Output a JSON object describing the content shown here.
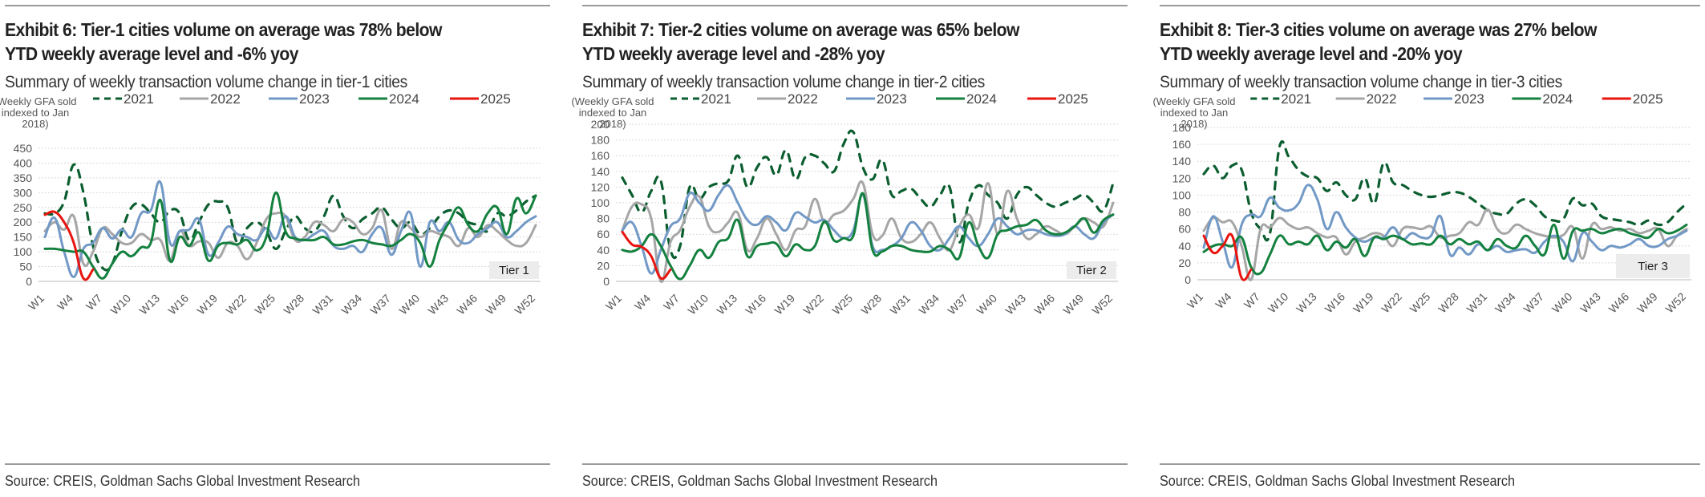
{
  "source": "Source: CREIS, Goldman Sachs Global Investment Research",
  "chart_data": [
    {
      "type": "line",
      "title": "Exhibit 6: Tier-1 cities volume on average was 78% below YTD weekly average level and -6% yoy",
      "title_line1": "Exhibit 6: Tier-1 cities volume on average was 78% below",
      "title_line2": "YTD weekly average level and -6% yoy",
      "subtitle": "Summary of weekly transaction volume change in tier-1 cities",
      "ylabel_lines": [
        "(Weekly GFA sold",
        "indexed to Jan",
        "2018)"
      ],
      "xlabel": "",
      "ylim": [
        0,
        450
      ],
      "yticks": [
        0,
        50,
        100,
        150,
        200,
        250,
        300,
        350,
        400,
        450
      ],
      "xtick_labels": [
        "W1",
        "W4",
        "W7",
        "W10",
        "W13",
        "W16",
        "W19",
        "W22",
        "W25",
        "W28",
        "W31",
        "W34",
        "W37",
        "W40",
        "W43",
        "W46",
        "W49",
        "W52"
      ],
      "grid": true,
      "legend_position": "top",
      "annotation": "Tier 1",
      "series": [
        {
          "name": "2021",
          "color": "#0b5e2f",
          "dash": true,
          "values": [
            230,
            230,
            270,
            395,
            300,
            120,
            45,
            60,
            170,
            250,
            260,
            230,
            200,
            240,
            230,
            140,
            200,
            260,
            270,
            250,
            130,
            180,
            200,
            170,
            110,
            170,
            220,
            180,
            170,
            220,
            290,
            220,
            180,
            210,
            230,
            250,
            210,
            180,
            200,
            160,
            180,
            220,
            240,
            230,
            200,
            190,
            170,
            230,
            220,
            240,
            270,
            290
          ]
        },
        {
          "name": "2022",
          "color": "#a6a6a6",
          "dash": false,
          "values": [
            170,
            200,
            175,
            220,
            60,
            100,
            180,
            160,
            130,
            130,
            160,
            140,
            140,
            70,
            170,
            120,
            135,
            130,
            80,
            130,
            120,
            75,
            130,
            210,
            230,
            220,
            140,
            150,
            200,
            190,
            170,
            210,
            200,
            160,
            180,
            240,
            110,
            200,
            180,
            150,
            170,
            160,
            150,
            120,
            180,
            150,
            190,
            170,
            140,
            120,
            130,
            190
          ]
        },
        {
          "name": "2023",
          "color": "#7299c6",
          "dash": false,
          "values": [
            150,
            215,
            100,
            15,
            110,
            130,
            180,
            145,
            175,
            150,
            230,
            240,
            335,
            130,
            170,
            175,
            210,
            90,
            130,
            185,
            160,
            150,
            140,
            180,
            145,
            220,
            150,
            140,
            160,
            170,
            120,
            110,
            120,
            100,
            160,
            180,
            90,
            170,
            230,
            50,
            200,
            170,
            200,
            140,
            130,
            160,
            180,
            200,
            150,
            170,
            200,
            220
          ]
        },
        {
          "name": "2024",
          "color": "#14813f",
          "dash": false,
          "values": [
            110,
            110,
            105,
            100,
            100,
            50,
            10,
            60,
            100,
            85,
            115,
            130,
            275,
            70,
            150,
            120,
            165,
            70,
            120,
            130,
            125,
            140,
            105,
            150,
            300,
            170,
            145,
            140,
            140,
            150,
            125,
            125,
            135,
            140,
            130,
            125,
            120,
            140,
            160,
            130,
            50,
            140,
            200,
            250,
            190,
            170,
            230,
            250,
            160,
            280,
            230,
            290
          ]
        },
        {
          "name": "2025",
          "color": "#e8140f",
          "dash": false,
          "values": [
            225,
            235,
            200,
            130,
            10,
            40
          ]
        }
      ]
    },
    {
      "type": "line",
      "title": "Exhibit 7: Tier-2 cities volume on average was 65% below YTD weekly average level and -28% yoy",
      "title_line1": "Exhibit 7: Tier-2 cities volume on average was 65% below",
      "title_line2": "YTD weekly average level and -28% yoy",
      "subtitle": "Summary of weekly transaction volume change in tier-2 cities",
      "ylabel_lines": [
        "(Weekly GFA sold",
        "indexed to Jan",
        "2018)"
      ],
      "xlabel": "",
      "ylim": [
        0,
        200
      ],
      "yticks": [
        0,
        20,
        40,
        60,
        80,
        100,
        120,
        140,
        160,
        180,
        200
      ],
      "xtick_labels": [
        "W1",
        "W4",
        "W7",
        "W10",
        "W13",
        "W16",
        "W19",
        "W22",
        "W25",
        "W28",
        "W31",
        "W34",
        "W37",
        "W40",
        "W43",
        "W46",
        "W49",
        "W52"
      ],
      "grid": true,
      "legend_position": "top",
      "annotation": "Tier 2",
      "series": [
        {
          "name": "2021",
          "color": "#0b5e2f",
          "dash": true,
          "values": [
            132,
            110,
            88,
            115,
            128,
            40,
            45,
            120,
            105,
            120,
            125,
            128,
            160,
            120,
            145,
            158,
            135,
            167,
            130,
            158,
            160,
            150,
            140,
            175,
            190,
            145,
            130,
            155,
            110,
            115,
            118,
            105,
            95,
            110,
            120,
            50,
            100,
            122,
            110,
            100,
            80,
            110,
            120,
            110,
            100,
            95,
            100,
            105,
            110,
            100,
            90,
            125
          ]
        },
        {
          "name": "2022",
          "color": "#a6a6a6",
          "dash": false,
          "values": [
            65,
            95,
            98,
            80,
            0,
            50,
            65,
            95,
            108,
            70,
            63,
            75,
            87,
            40,
            55,
            80,
            60,
            40,
            65,
            70,
            105,
            75,
            85,
            90,
            105,
            125,
            60,
            58,
            80,
            55,
            50,
            60,
            75,
            55,
            40,
            70,
            85,
            68,
            125,
            60,
            115,
            80,
            55,
            60,
            70,
            65,
            60,
            70,
            80,
            75,
            70,
            100
          ]
        },
        {
          "name": "2023",
          "color": "#7299c6",
          "dash": false,
          "values": [
            65,
            75,
            45,
            10,
            40,
            70,
            80,
            112,
            100,
            90,
            110,
            122,
            100,
            78,
            72,
            83,
            75,
            65,
            87,
            82,
            75,
            78,
            65,
            55,
            65,
            110,
            45,
            40,
            45,
            55,
            75,
            65,
            45,
            40,
            55,
            70,
            55,
            45,
            60,
            80,
            70,
            60,
            65,
            65,
            60,
            58,
            60,
            70,
            60,
            55,
            75,
            85
          ]
        },
        {
          "name": "2024",
          "color": "#14813f",
          "dash": false,
          "values": [
            40,
            38,
            45,
            60,
            45,
            20,
            3,
            20,
            40,
            30,
            50,
            55,
            78,
            32,
            45,
            48,
            48,
            32,
            47,
            40,
            45,
            76,
            52,
            55,
            58,
            112,
            40,
            38,
            45,
            45,
            40,
            38,
            38,
            45,
            40,
            30,
            75,
            45,
            30,
            60,
            65,
            70,
            72,
            78,
            65,
            60,
            62,
            70,
            80,
            62,
            78,
            85
          ]
        },
        {
          "name": "2025",
          "color": "#e8140f",
          "dash": false,
          "values": [
            63,
            47,
            44,
            32,
            4,
            15
          ]
        }
      ]
    },
    {
      "type": "line",
      "title": "Exhibit 8: Tier-3 cities volume on average was 27% below YTD weekly average level and -20% yoy",
      "title_line1": "Exhibit 8: Tier-3 cities volume on average was 27% below",
      "title_line2": "YTD weekly average level and -20% yoy",
      "subtitle": "Summary of weekly transaction volume change in tier-3 cities",
      "ylabel_lines": [
        "(Weekly GFA sold",
        "indexed to Jan",
        "2018)"
      ],
      "xlabel": "",
      "ylim": [
        0,
        180
      ],
      "yticks": [
        0,
        20,
        40,
        60,
        80,
        100,
        120,
        140,
        160,
        180
      ],
      "xtick_labels": [
        "W1",
        "W4",
        "W7",
        "W10",
        "W13",
        "W16",
        "W19",
        "W22",
        "W25",
        "W28",
        "W31",
        "W34",
        "W37",
        "W40",
        "W43",
        "W46",
        "W49",
        "W52"
      ],
      "grid": true,
      "legend_position": "top",
      "annotation": "Tier 3",
      "series": [
        {
          "name": "2021",
          "color": "#0b5e2f",
          "dash": true,
          "values": [
            125,
            135,
            120,
            135,
            130,
            80,
            60,
            55,
            157,
            145,
            130,
            122,
            120,
            105,
            115,
            100,
            95,
            120,
            90,
            138,
            115,
            112,
            105,
            100,
            98,
            100,
            103,
            103,
            98,
            90,
            82,
            78,
            78,
            90,
            95,
            88,
            75,
            70,
            72,
            96,
            88,
            90,
            75,
            72,
            70,
            68,
            65,
            70,
            65,
            68,
            80,
            90
          ]
        },
        {
          "name": "2022",
          "color": "#a6a6a6",
          "dash": false,
          "values": [
            58,
            73,
            68,
            68,
            40,
            0,
            60,
            62,
            73,
            65,
            60,
            62,
            55,
            50,
            50,
            30,
            45,
            50,
            55,
            52,
            40,
            60,
            62,
            60,
            63,
            50,
            52,
            55,
            68,
            65,
            83,
            60,
            55,
            65,
            60,
            55,
            52,
            50,
            53,
            62,
            25,
            65,
            60,
            62,
            58,
            60,
            55,
            58,
            60,
            40,
            52,
            60
          ]
        },
        {
          "name": "2023",
          "color": "#7299c6",
          "dash": false,
          "values": [
            38,
            75,
            45,
            15,
            65,
            77,
            75,
            97,
            85,
            82,
            90,
            112,
            95,
            60,
            80,
            62,
            50,
            45,
            50,
            50,
            62,
            48,
            55,
            50,
            52,
            75,
            30,
            38,
            30,
            42,
            35,
            40,
            33,
            35,
            36,
            32,
            45,
            52,
            45,
            22,
            55,
            45,
            35,
            40,
            38,
            42,
            48,
            40,
            40,
            48,
            52,
            58
          ]
        },
        {
          "name": "2024",
          "color": "#14813f",
          "dash": false,
          "values": [
            33,
            40,
            42,
            40,
            50,
            15,
            8,
            30,
            52,
            42,
            45,
            42,
            52,
            35,
            45,
            38,
            48,
            28,
            50,
            48,
            52,
            48,
            42,
            43,
            42,
            52,
            42,
            48,
            42,
            45,
            35,
            48,
            40,
            38,
            52,
            40,
            30,
            65,
            25,
            58,
            58,
            60,
            55,
            58,
            60,
            55,
            52,
            50,
            60,
            55,
            58,
            65
          ]
        },
        {
          "name": "2025",
          "color": "#e8140f",
          "dash": false,
          "values": [
            52,
            32,
            40,
            52,
            2,
            12
          ]
        }
      ]
    }
  ]
}
